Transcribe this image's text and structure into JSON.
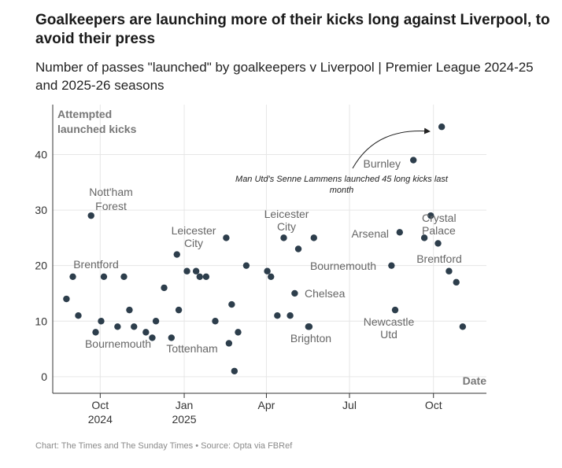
{
  "header": {
    "title": "Goalkeepers are launching more of their kicks long against Liverpool, to avoid their press",
    "subtitle": "Number of passes \"launched\" by goalkeepers v Liverpool | Premier League 2024-25 and 2025-26 seasons"
  },
  "footer": {
    "source": "Chart: The Times and The Sunday Times • Source: Opta via FBRef"
  },
  "colors": {
    "dot": "#2d3e4c",
    "grid": "#e6e6e6",
    "axis": "#333333",
    "label": "#666666"
  },
  "chart_data": {
    "type": "scatter",
    "title": "Goalkeepers are launching more of their kicks long against Liverpool, to avoid their press",
    "ylabel": "Attempted launched kicks",
    "xlabel": "Date",
    "ylim": [
      -3,
      49
    ],
    "yticks": [
      "0",
      "10",
      "20",
      "30",
      "40"
    ],
    "ytick_values": [
      0,
      10,
      20,
      30,
      40
    ],
    "xlim": [
      "2024-08-10",
      "2025-11-28"
    ],
    "xticks": [
      {
        "date": "2024-10-01",
        "label": "Oct",
        "year": "2024"
      },
      {
        "date": "2025-01-01",
        "label": "Jan",
        "year": "2025"
      },
      {
        "date": "2025-04-01",
        "label": "Apr",
        "year": ""
      },
      {
        "date": "2025-07-01",
        "label": "Jul",
        "year": ""
      },
      {
        "date": "2025-10-01",
        "label": "Oct",
        "year": ""
      }
    ],
    "points": [
      {
        "date": "2024-08-25",
        "value": 14
      },
      {
        "date": "2024-09-01",
        "value": 18,
        "label": "Brentford"
      },
      {
        "date": "2024-09-07",
        "value": 11
      },
      {
        "date": "2024-09-21",
        "value": 29,
        "label": "Nott'ham Forest"
      },
      {
        "date": "2024-09-26",
        "value": 8,
        "label": "Bournemouth"
      },
      {
        "date": "2024-10-02",
        "value": 10
      },
      {
        "date": "2024-10-05",
        "value": 18
      },
      {
        "date": "2024-10-20",
        "value": 9
      },
      {
        "date": "2024-10-27",
        "value": 18
      },
      {
        "date": "2024-11-02",
        "value": 12
      },
      {
        "date": "2024-11-07",
        "value": 9
      },
      {
        "date": "2024-11-20",
        "value": 8
      },
      {
        "date": "2024-11-27",
        "value": 7
      },
      {
        "date": "2024-12-01",
        "value": 10
      },
      {
        "date": "2024-12-10",
        "value": 16
      },
      {
        "date": "2024-12-18",
        "value": 7,
        "label": "Tottenham"
      },
      {
        "date": "2024-12-24",
        "value": 22,
        "label": "Leicester City"
      },
      {
        "date": "2024-12-26",
        "value": 12
      },
      {
        "date": "2025-01-04",
        "value": 19
      },
      {
        "date": "2025-01-14",
        "value": 19
      },
      {
        "date": "2025-01-18",
        "value": 18
      },
      {
        "date": "2025-01-25",
        "value": 18
      },
      {
        "date": "2025-02-04",
        "value": 10
      },
      {
        "date": "2025-02-16",
        "value": 25
      },
      {
        "date": "2025-02-19",
        "value": 6
      },
      {
        "date": "2025-02-22",
        "value": 13
      },
      {
        "date": "2025-02-25",
        "value": 1
      },
      {
        "date": "2025-03-01",
        "value": 8
      },
      {
        "date": "2025-03-10",
        "value": 20
      },
      {
        "date": "2025-04-02",
        "value": 19
      },
      {
        "date": "2025-04-06",
        "value": 18
      },
      {
        "date": "2025-04-13",
        "value": 11
      },
      {
        "date": "2025-04-20",
        "value": 25,
        "label": "Leicester City"
      },
      {
        "date": "2025-04-27",
        "value": 11
      },
      {
        "date": "2025-05-02",
        "value": 15,
        "label": "Chelsea"
      },
      {
        "date": "2025-05-06",
        "value": 23
      },
      {
        "date": "2025-05-17",
        "value": 9
      },
      {
        "date": "2025-05-18",
        "value": 9,
        "label": "Brighton"
      },
      {
        "date": "2025-05-23",
        "value": 25
      },
      {
        "date": "2025-08-16",
        "value": 20,
        "label": "Bournemouth"
      },
      {
        "date": "2025-08-20",
        "value": 12,
        "label": "Newcastle Utd"
      },
      {
        "date": "2025-08-25",
        "value": 26,
        "label": "Arsenal"
      },
      {
        "date": "2025-09-09",
        "value": 39,
        "label": "Burnley"
      },
      {
        "date": "2025-09-21",
        "value": 25
      },
      {
        "date": "2025-09-28",
        "value": 29,
        "label": "Crystal Palace"
      },
      {
        "date": "2025-10-06",
        "value": 24
      },
      {
        "date": "2025-10-10",
        "value": 45
      },
      {
        "date": "2025-10-18",
        "value": 19,
        "label": "Brentford"
      },
      {
        "date": "2025-10-26",
        "value": 17
      },
      {
        "date": "2025-11-02",
        "value": 9
      }
    ],
    "annotations": [
      {
        "text": "Man Utd's Senne Lammens launched 45 long kicks last month",
        "points_to_date": "2025-10-10",
        "points_to_value": 45
      }
    ]
  }
}
